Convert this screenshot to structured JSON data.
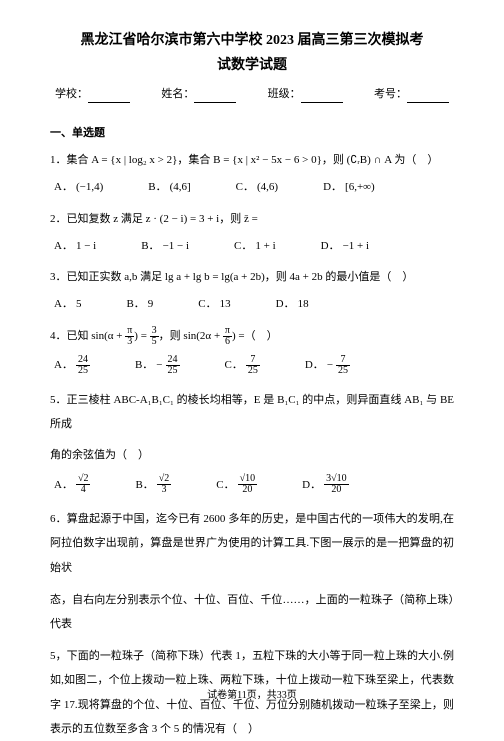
{
  "title_line1": "黑龙江省哈尔滨市第六中学校 2023 届高三第三次模拟考",
  "title_line2": "试数学试题",
  "meta": {
    "school": "学校：",
    "name": "姓名：",
    "class": "班级：",
    "examno": "考号："
  },
  "section1": "一、单选题",
  "q1": {
    "stem": "1．集合 A = {x | log₂ x > 2}，集合 B = {x | x² − 5x − 6 > 0}，则 (∁ᵣB) ∩ A 为（　）",
    "opts": [
      "(−1,4)",
      "(4,6]",
      "(4,6)",
      "[6,+∞)"
    ]
  },
  "q2": {
    "stem": "2．已知复数 z 满足 z · (2 − i) = 3 + i，则 z̄ =",
    "opts": [
      "1 − i",
      "−1 − i",
      "1 + i",
      "−1 + i"
    ]
  },
  "q3": {
    "stem": "3．已知正实数 a,b 满足 lg a + lg b = lg(a + 2b)，则 4a + 2b 的最小值是（　）",
    "opts": [
      "5",
      "9",
      "13",
      "18"
    ]
  },
  "q4": {
    "stem_a": "4．已知 sin",
    "stem_b": "，则 sin",
    "stem_c": " =（　）"
  },
  "q5": {
    "stem_a": "5．正三棱柱 ABC-A₁B₁C₁ 的棱长均相等，E 是 B₁C₁ 的中点，则异面直线 AB₁ 与 BE 所成",
    "stem_b": "角的余弦值为（　）"
  },
  "q6": {
    "p1": "6．算盘起源于中国，迄今已有 2600 多年的历史，是中国古代的一项伟大的发明,在阿拉伯数字出现前，算盘是世界广为使用的计算工具.下图一展示的是一把算盘的初始状",
    "p2": "态，自右向左分别表示个位、十位、百位、千位……，上面的一粒珠子（简称上珠）代表",
    "p3": "5，下面的一粒珠子（简称下珠）代表 1，五粒下珠的大小等于同一粒上珠的大小.例如,如图二，个位上拨动一粒上珠、两粒下珠，十位上拨动一粒下珠至梁上，代表数字 17.现将算盘的个位、十位、百位、千位、万位分别随机拨动一粒珠子至梁上，则表示的五位数至多含 3 个 5 的情况有（　）"
  },
  "footer": "试卷第11页，共33页",
  "labels": [
    "A．",
    "B．",
    "C．",
    "D．"
  ]
}
